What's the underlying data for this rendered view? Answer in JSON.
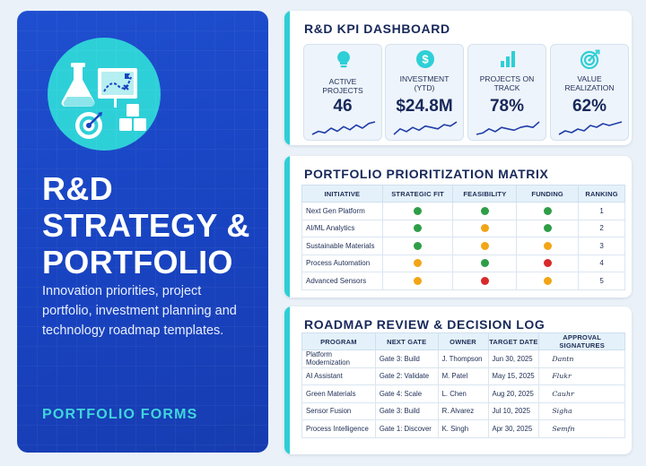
{
  "hero": {
    "title_lines": [
      "R&D",
      "Strategy &",
      "Portfolio"
    ],
    "description": "Innovation priorities, project portfolio, investment planning and technology roadmap templates.",
    "footer": "PORTFOLIO FORMS"
  },
  "kpi_dashboard": {
    "title": "R&D KPI Dashboard",
    "cards": [
      {
        "label": "ACTIVE PROJECTS",
        "value": "46",
        "icon": "lightbulb-icon",
        "spark": [
          4,
          6,
          5,
          8,
          6,
          9,
          7,
          10,
          8,
          11,
          12
        ]
      },
      {
        "label": "INVESTMENT (YTD)",
        "value": "$24.8M",
        "icon": "dollar-icon",
        "spark": [
          3,
          7,
          5,
          8,
          6,
          9,
          8,
          7,
          10,
          9,
          12
        ]
      },
      {
        "label": "PROJECTS ON TRACK",
        "value": "78%",
        "icon": "bar-chart-icon",
        "spark": [
          4,
          5,
          8,
          6,
          9,
          8,
          7,
          9,
          10,
          9,
          13
        ]
      },
      {
        "label": "VALUE REALIZATION",
        "value": "62%",
        "icon": "target-icon",
        "spark": [
          4,
          6,
          5,
          7,
          6,
          9,
          8,
          10,
          9,
          10,
          11
        ]
      }
    ],
    "accent_color": "#2ecfd6"
  },
  "matrix": {
    "title": "Portfolio Prioritization Matrix",
    "headers": [
      "INITIATIVE",
      "STRATEGIC FIT",
      "FEASIBILITY",
      "FUNDING",
      "RANKING"
    ],
    "rows": [
      {
        "initiative": "Next Gen Platform",
        "fit": "green",
        "feasibility": "green",
        "funding": "green",
        "ranking": "1"
      },
      {
        "initiative": "AI/ML Analytics",
        "fit": "green",
        "feasibility": "amber",
        "funding": "green",
        "ranking": "2"
      },
      {
        "initiative": "Sustainable Materials",
        "fit": "green",
        "feasibility": "amber",
        "funding": "amber",
        "ranking": "3"
      },
      {
        "initiative": "Process Automation",
        "fit": "amber",
        "feasibility": "green",
        "funding": "red",
        "ranking": "4"
      },
      {
        "initiative": "Advanced Sensors",
        "fit": "amber",
        "feasibility": "red",
        "funding": "amber",
        "ranking": "5"
      }
    ],
    "status_colors": {
      "green": "#2e9e47",
      "amber": "#f2a516",
      "red": "#d72a2a"
    }
  },
  "roadmap": {
    "title": "Roadmap Review & Decision Log",
    "headers": [
      "PROGRAM",
      "NEXT GATE",
      "OWNER",
      "TARGET DATE",
      "APPROVAL SIGNATURES"
    ],
    "rows": [
      {
        "program": "Platform Modernization",
        "gate": "Gate 3: Build",
        "owner": "J. Thompson",
        "date": "Jun 30, 2025",
        "signature": "Dantn"
      },
      {
        "program": "AI Assistant",
        "gate": "Gate 2: Validate",
        "owner": "M. Patel",
        "date": "May 15, 2025",
        "signature": "Flukr"
      },
      {
        "program": "Green Materials",
        "gate": "Gate 4: Scale",
        "owner": "L. Chen",
        "date": "Aug 20, 2025",
        "signature": "Cauhr"
      },
      {
        "program": "Sensor Fusion",
        "gate": "Gate 3: Build",
        "owner": "R. Alvarez",
        "date": "Jul 10, 2025",
        "signature": "Sigha"
      },
      {
        "program": "Process Intelligence",
        "gate": "Gate 1: Discover",
        "owner": "K. Singh",
        "date": "Apr 30, 2025",
        "signature": "Semfn"
      }
    ]
  }
}
